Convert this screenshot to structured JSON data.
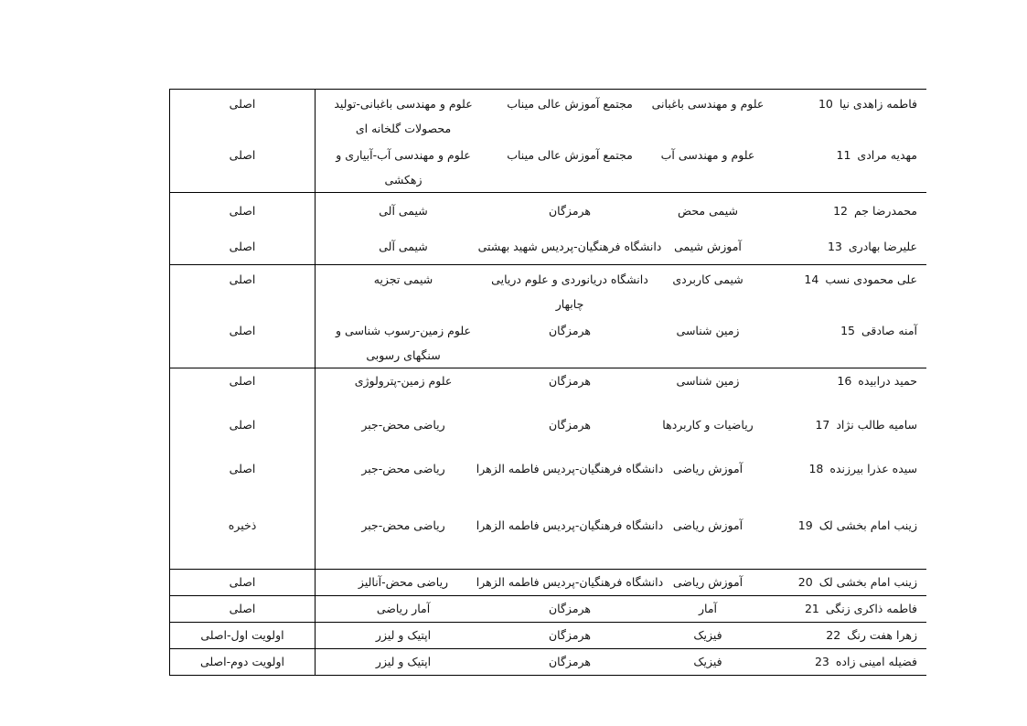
{
  "table": {
    "rows": [
      {
        "num": "10",
        "name": "فاطمه زاهدی نیا",
        "field": "علوم و مهندسی باغبانی",
        "university": "مجتمع آموزش عالی میناب",
        "specialty": "علوم و مهندسی باغبانی-تولید محصولات گلخانه ای",
        "status": "اصلی"
      },
      {
        "num": "11",
        "name": "مهدیه مرادی",
        "field": "علوم و مهندسی آب",
        "university": "مجتمع آموزش عالی میناب",
        "specialty": "علوم و مهندسی آب-آبیاری و زهکشی",
        "status": "اصلی"
      },
      {
        "num": "12",
        "name": "محمدرضا جم",
        "field": "شیمی محض",
        "university": "هرمزگان",
        "specialty": "شیمی آلی",
        "status": "اصلی"
      },
      {
        "num": "13",
        "name": "علیرضا بهادری",
        "field": "آموزش شیمی",
        "university": "دانشگاه فرهنگیان-پردیس شهید بهشتی",
        "specialty": "شیمی آلی",
        "status": "اصلی"
      },
      {
        "num": "14",
        "name": "علی محمودی نسب",
        "field": "شیمی کاربردی",
        "university": "دانشگاه دریانوردی و علوم دریایی چابهار",
        "specialty": "شیمی تجزیه",
        "status": "اصلی"
      },
      {
        "num": "15",
        "name": "آمنه صادقی",
        "field": "زمین شناسی",
        "university": "هرمزگان",
        "specialty": "علوم زمین-رسوب شناسی و سنگهای رسوبی",
        "status": "اصلی"
      },
      {
        "num": "16",
        "name": "حمید درابیده",
        "field": "زمین شناسی",
        "university": "هرمزگان",
        "specialty": "علوم زمین-پترولوژی",
        "status": "اصلی"
      },
      {
        "num": "17",
        "name": "سامیه طالب نژاد",
        "field": "ریاضیات و کاربردها",
        "university": "هرمزگان",
        "specialty": "ریاضی محض-جبر",
        "status": "اصلی"
      },
      {
        "num": "18",
        "name": "سیده عذرا بیرزنده",
        "field": "آموزش ریاضی",
        "university": "دانشگاه فرهنگیان-پردیس فاطمه الزهرا",
        "specialty": "ریاضی محض-جبر",
        "status": "اصلی"
      },
      {
        "num": "19",
        "name": "زینب امام بخشی لک",
        "field": "آموزش ریاضی",
        "university": "دانشگاه فرهنگیان-پردیس فاطمه الزهرا",
        "specialty": "ریاضی محض-جبر",
        "status": "ذخیره"
      },
      {
        "num": "20",
        "name": "زینب امام بخشی لک",
        "field": "آموزش ریاضی",
        "university": "دانشگاه فرهنگیان-پردیس فاطمه الزهرا",
        "specialty": "ریاضی محض-آنالیز",
        "status": "اصلی"
      },
      {
        "num": "21",
        "name": "فاطمه ذاکری زنگی",
        "field": "آمار",
        "university": "هرمزگان",
        "specialty": "آمار ریاضی",
        "status": "اصلی"
      },
      {
        "num": "22",
        "name": "زهرا هفت رنگ",
        "field": "فیزیک",
        "university": "هرمزگان",
        "specialty": "اپتیک و لیزر",
        "status": "اولویت اول-اصلی"
      },
      {
        "num": "23",
        "name": "فضیله امینی زاده",
        "field": "فیزیک",
        "university": "هرمزگان",
        "specialty": "اپتیک و لیزر",
        "status": "اولویت دوم-اصلی"
      }
    ],
    "blocks": [
      [
        0,
        1
      ],
      [
        2,
        3
      ],
      [
        4,
        5
      ],
      [
        6,
        7,
        8,
        9
      ],
      [
        10
      ],
      [
        11
      ],
      [
        12
      ],
      [
        13
      ]
    ]
  }
}
